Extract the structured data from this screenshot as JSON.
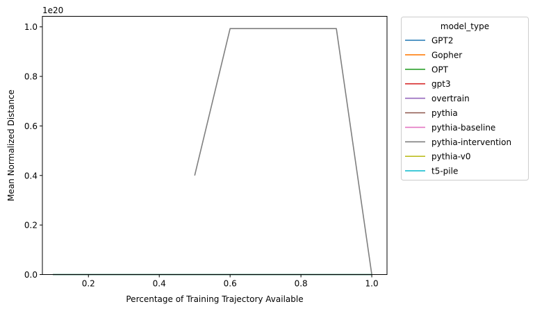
{
  "chart_data": {
    "type": "line",
    "xlabel": "Percentage of Training Trajectory Available",
    "ylabel": "Mean Normalized Distance",
    "y_multiplier_label": "1e20",
    "y_scale_exponent": 20,
    "xlim": [
      0.07,
      1.043
    ],
    "ylim": [
      0,
      1.0426
    ],
    "x_ticks": [
      0.2,
      0.4,
      0.6,
      0.8,
      1.0
    ],
    "x_tick_labels": [
      "0.2",
      "0.4",
      "0.6",
      "0.8",
      "1.0"
    ],
    "y_ticks": [
      0.0,
      0.2,
      0.4,
      0.6,
      0.8,
      1.0
    ],
    "y_tick_labels": [
      "0.0",
      "0.2",
      "0.4",
      "0.6",
      "0.8",
      "1.0"
    ],
    "grid": false,
    "legend": {
      "title": "model_type",
      "placement": "outside-top-right"
    },
    "series": [
      {
        "name": "GPT2",
        "color": "#1f77b4",
        "x": [
          0.1,
          1.0
        ],
        "y": [
          0,
          0
        ]
      },
      {
        "name": "Gopher",
        "color": "#ff7f0e",
        "x": [
          0.1,
          1.0
        ],
        "y": [
          0,
          0
        ]
      },
      {
        "name": "OPT",
        "color": "#2ca02c",
        "x": [
          0.1,
          1.0
        ],
        "y": [
          0,
          0
        ]
      },
      {
        "name": "gpt3",
        "color": "#d62728",
        "x": [
          0.1,
          1.0
        ],
        "y": [
          0,
          0
        ]
      },
      {
        "name": "overtrain",
        "color": "#9467bd",
        "x": [
          0.1,
          1.0
        ],
        "y": [
          0,
          0
        ]
      },
      {
        "name": "pythia",
        "color": "#8c564b",
        "x": [
          0.1,
          1.0
        ],
        "y": [
          0,
          0
        ]
      },
      {
        "name": "pythia-baseline",
        "color": "#e377c2",
        "x": [
          0.1,
          1.0
        ],
        "y": [
          0,
          0
        ]
      },
      {
        "name": "pythia-intervention",
        "color": "#7f7f7f",
        "x": [
          0.5,
          0.6,
          0.7,
          0.8,
          0.9,
          1.0
        ],
        "y": [
          0.4,
          0.993,
          0.993,
          0.993,
          0.993,
          0
        ]
      },
      {
        "name": "pythia-v0",
        "color": "#bcbd22",
        "x": [
          0.1,
          1.0
        ],
        "y": [
          0,
          0
        ]
      },
      {
        "name": "t5-pile",
        "color": "#17becf",
        "x": [
          0.1,
          1.0
        ],
        "y": [
          0,
          0
        ]
      }
    ]
  }
}
